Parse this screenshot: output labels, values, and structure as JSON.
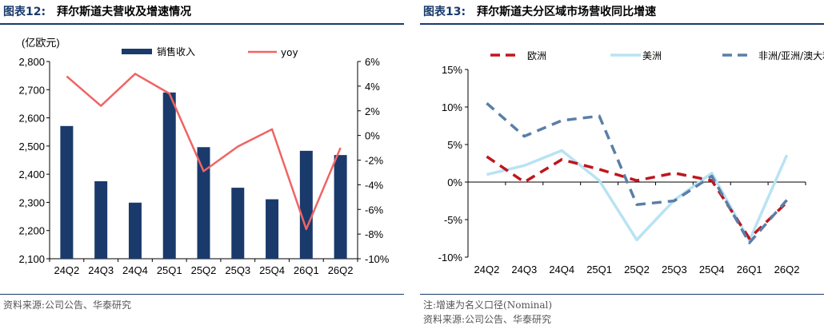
{
  "left": {
    "figure_label": "图表12:",
    "figure_title": "拜尔斯道夫营收及增速情况",
    "unit_label": "(亿欧元)",
    "source": "资料来源:公司公告、华泰研究"
  },
  "right": {
    "figure_label": "图表13:",
    "figure_title": "拜尔斯道夫分区域市场营收同比增速",
    "note": "注:增速为名义口径(Nominal)",
    "source": "资料来源:公司公告、华泰研究"
  },
  "chart_data": [
    {
      "type": "bar",
      "categories": [
        "24Q2",
        "24Q3",
        "24Q4",
        "25Q1",
        "25Q2",
        "25Q3",
        "25Q4",
        "26Q1",
        "26Q2"
      ],
      "series": [
        {
          "name": "销售收入",
          "type": "bar",
          "axis": "left",
          "color": "#1a3a6b",
          "values": [
            2571,
            2375,
            2299,
            2690,
            2496,
            2352,
            2311,
            2483,
            2468
          ]
        },
        {
          "name": "yoy",
          "type": "line",
          "axis": "right",
          "color": "#f06464",
          "values": [
            4.8,
            2.4,
            5.0,
            3.4,
            -2.9,
            -0.9,
            0.5,
            -7.6,
            -1.0
          ]
        }
      ],
      "ylim_left": [
        2100,
        2800
      ],
      "yticks_left": [
        "2,100",
        "2,200",
        "2,300",
        "2,400",
        "2,500",
        "2,600",
        "2,700",
        "2,800"
      ],
      "ylim_right": [
        -10,
        6
      ],
      "yticks_right": [
        "-10%",
        "-8%",
        "-6%",
        "-4%",
        "-2%",
        "0%",
        "2%",
        "4%",
        "6%"
      ],
      "legend_position": "top",
      "grid": false
    },
    {
      "type": "line",
      "categories": [
        "24Q2",
        "24Q3",
        "24Q4",
        "25Q1",
        "25Q2",
        "25Q3",
        "25Q4",
        "26Q1",
        "26Q2"
      ],
      "series": [
        {
          "name": "欧洲",
          "color": "#c0151e",
          "dash": "dashed",
          "values": [
            3.4,
            0.0,
            3.0,
            1.7,
            0.2,
            1.2,
            0.2,
            -7.5,
            -2.7
          ]
        },
        {
          "name": "美洲",
          "color": "#b8e3f3",
          "dash": "solid",
          "values": [
            1.0,
            2.2,
            4.2,
            0.2,
            -7.7,
            -2.4,
            1.2,
            -7.8,
            3.6
          ]
        },
        {
          "name": "非洲/亚洲/澳大利亚",
          "color": "#5b7ea8",
          "dash": "dashed",
          "values": [
            10.5,
            6.1,
            8.2,
            8.8,
            -3.0,
            -2.5,
            0.8,
            -8.1,
            -2.4
          ]
        }
      ],
      "ylim": [
        -10,
        15
      ],
      "yticks": [
        "-10%",
        "-5%",
        "0%",
        "5%",
        "10%",
        "15%"
      ],
      "legend_position": "top",
      "grid": false
    }
  ]
}
